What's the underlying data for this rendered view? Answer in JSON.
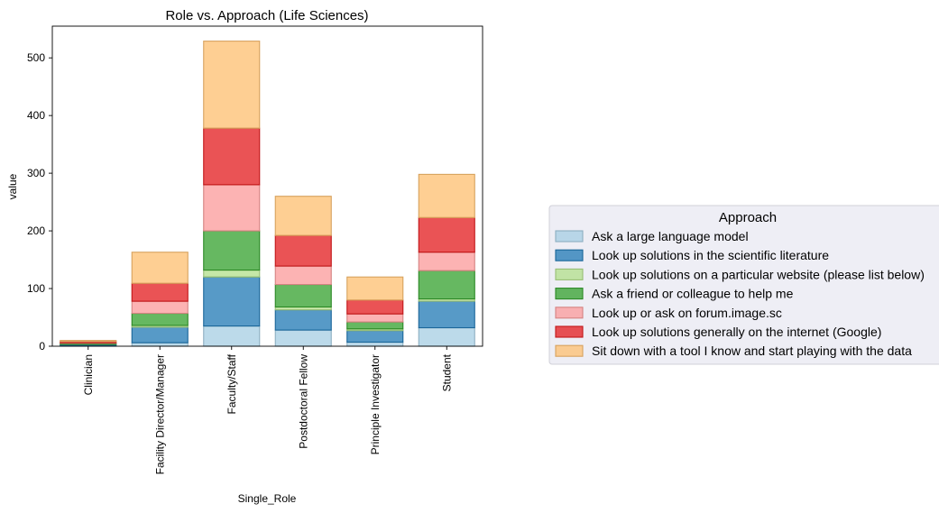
{
  "chart_data": {
    "type": "bar",
    "stacked": true,
    "title": "Role vs. Approach (Life Sciences)",
    "xlabel": "Single_Role",
    "ylabel": "value",
    "ylim": [
      0,
      555
    ],
    "yticks": [
      0,
      100,
      200,
      300,
      400,
      500
    ],
    "grid": false,
    "legend_title": "Approach",
    "legend_position": "right",
    "categories": [
      "Clinician",
      "Facility Director/Manager",
      "Faculty/Staff",
      "Postdoctoral Fellow",
      "Principle Investigator",
      "Student"
    ],
    "series": [
      {
        "name": "Ask a large language model",
        "color": "#a6cee3",
        "values": [
          1,
          6,
          35,
          28,
          7,
          32
        ]
      },
      {
        "name": "Look up solutions in the scientific literature",
        "color": "#1f78b4",
        "values": [
          2,
          27,
          85,
          35,
          20,
          46
        ]
      },
      {
        "name": "Look up solutions on a particular website (please list below)",
        "color": "#b2df8a",
        "values": [
          0,
          3,
          12,
          5,
          3,
          4
        ]
      },
      {
        "name": "Ask a friend or colleague to help me",
        "color": "#33a02c",
        "values": [
          2,
          21,
          68,
          39,
          12,
          49
        ]
      },
      {
        "name": "Look up or ask on forum.image.sc",
        "color": "#fb9a99",
        "values": [
          1,
          21,
          80,
          32,
          14,
          32
        ]
      },
      {
        "name": "Look up solutions generally on the internet (Google)",
        "color": "#e31a1c",
        "values": [
          2,
          31,
          98,
          53,
          24,
          60
        ]
      },
      {
        "name": "Sit down with a tool I know and start playing with the data",
        "color": "#fdbf6f",
        "values": [
          2,
          54,
          151,
          68,
          40,
          75
        ]
      }
    ]
  }
}
